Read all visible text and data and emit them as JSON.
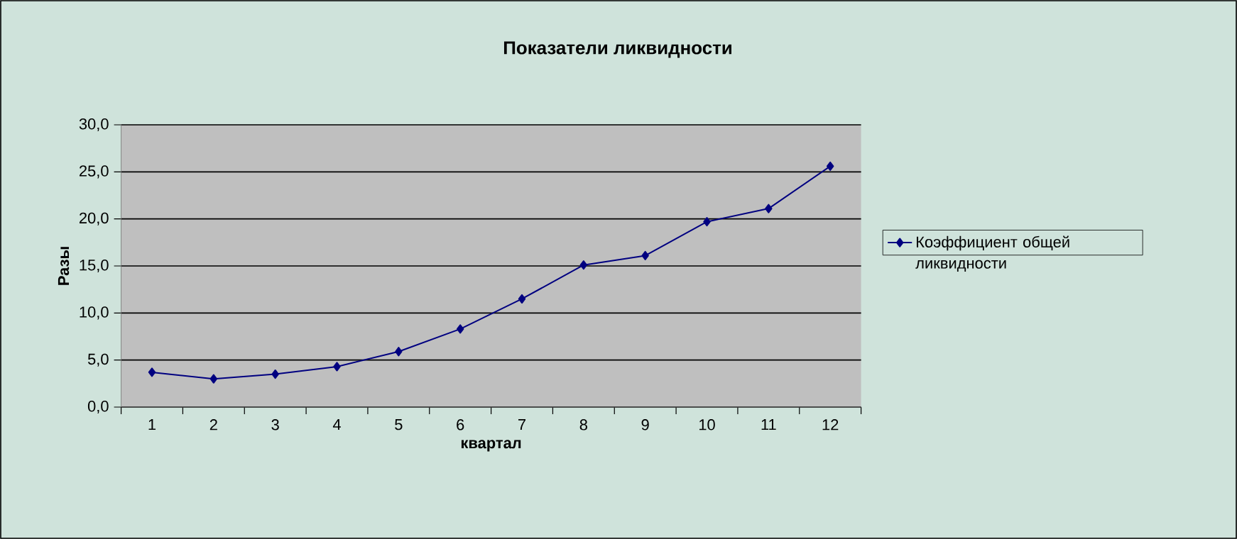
{
  "chart_data": {
    "type": "line",
    "title": "Показатели ликвидности",
    "xlabel": "квартал",
    "ylabel": "Разы",
    "categories": [
      "1",
      "2",
      "3",
      "4",
      "5",
      "6",
      "7",
      "8",
      "9",
      "10",
      "11",
      "12"
    ],
    "series": [
      {
        "name": "Коэффициент общей ликвидности",
        "color": "#000080",
        "values": [
          3.7,
          3.0,
          3.5,
          4.3,
          5.9,
          8.3,
          11.5,
          15.1,
          16.1,
          19.7,
          21.1,
          25.6
        ]
      }
    ],
    "ylim": [
      0,
      30
    ],
    "yticks": [
      {
        "value": 0,
        "label": "0,0"
      },
      {
        "value": 5,
        "label": "5,0"
      },
      {
        "value": 10,
        "label": "10,0"
      },
      {
        "value": 15,
        "label": "15,0"
      },
      {
        "value": 20,
        "label": "20,0"
      },
      {
        "value": 25,
        "label": "25,0"
      },
      {
        "value": 30,
        "label": "30,0"
      }
    ],
    "grid": "y",
    "legend": "right",
    "marker": "diamond",
    "line_style": "solid"
  }
}
